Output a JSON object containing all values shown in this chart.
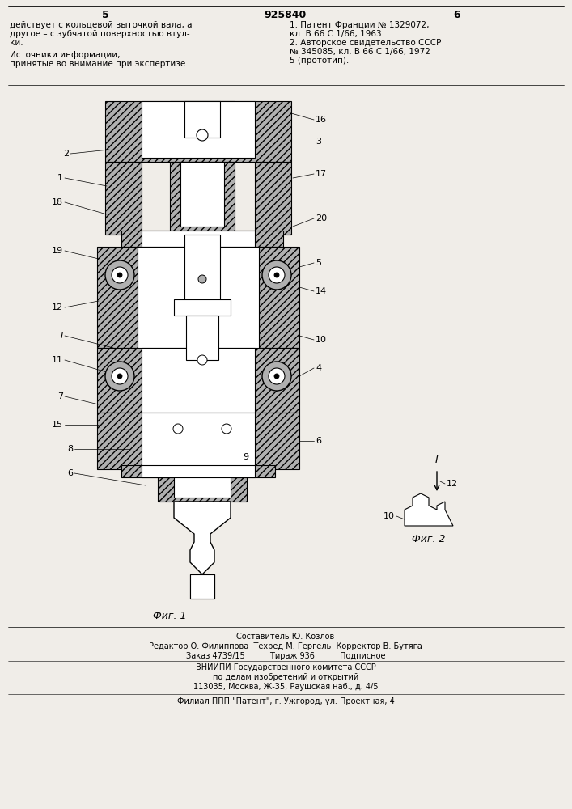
{
  "bg_color": "#f0ede8",
  "page_width": 7.07,
  "page_height": 10.0,
  "header_number": "925840",
  "page_left": "5",
  "page_right": "6",
  "top_text_left": [
    "действует с кольцевой выточкой вала, а",
    "другое – с зубчатой поверхностью втул-",
    "ки."
  ],
  "top_text_right": [
    "1. Патент Франции № 1329072,",
    "кл. В 66 С 1/66, 1963.",
    "2. Авторское свидетельство СССР",
    "№ 345085, кл. В 66 С 1/66, 1972",
    "5 (прототип)."
  ],
  "sources_header": "Источники информации,",
  "sources_subheader": "принятые во внимание при экспертизе",
  "fig1_label": "Фиг. 1",
  "fig2_label": "Фиг. 2",
  "footer_lines": [
    "Составитель Ю. Козлов",
    "Редактор О. Филиппова  Техред М. Гергель  Корректор В. Бутяга",
    "Заказ 4739/15          Тираж 936          Подписное",
    "ВНИИПИ Государственного комитета СССР",
    "по делам изобретений и открытий",
    "113035, Москва, Ж-35, Раушская наб., д. 4/5",
    "Филиал ППП \"Патент\", г. Ужгород, ул. Проектная, 4"
  ]
}
